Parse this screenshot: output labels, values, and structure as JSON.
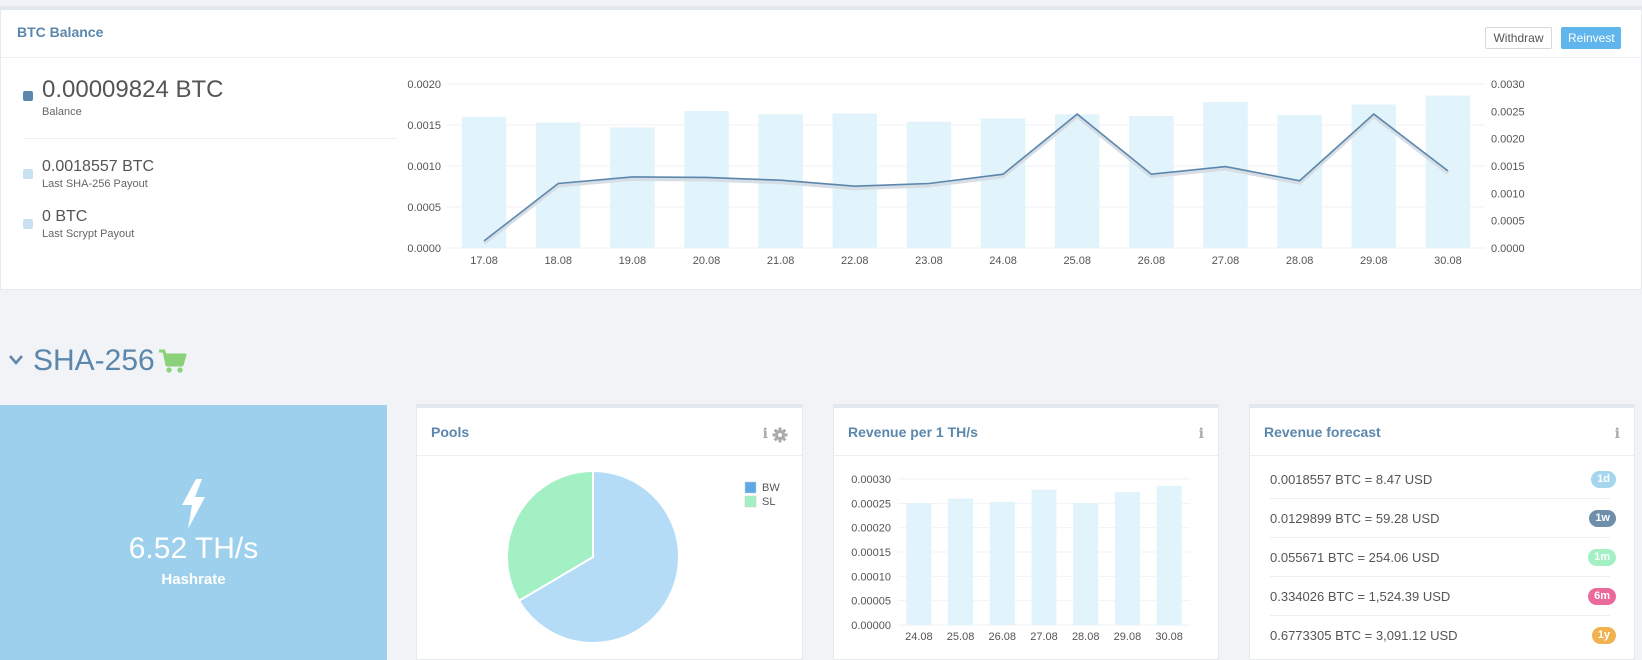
{
  "balance": {
    "title": "BTC Balance",
    "withdraw_label": "Withdraw",
    "reinvest_label": "Reinvest",
    "items": [
      {
        "value": "0.00009824 BTC",
        "label": "Balance",
        "color": "#5b87ad"
      },
      {
        "value": "0.0018557 BTC",
        "label": "Last SHA-256 Payout",
        "color": "#c9e2ef"
      },
      {
        "value": "0 BTC",
        "label": "Last Scrypt Payout",
        "color": "#c9e2ef"
      }
    ]
  },
  "chart_data": [
    {
      "type": "bar+line",
      "title": "BTC Balance",
      "categories": [
        "17.08",
        "18.08",
        "19.08",
        "20.08",
        "21.08",
        "22.08",
        "23.08",
        "24.08",
        "25.08",
        "26.08",
        "27.08",
        "28.08",
        "29.08",
        "30.08"
      ],
      "series": [
        {
          "name": "bars",
          "axis": "left",
          "values": [
            0.0016,
            0.00153,
            0.00147,
            0.00167,
            0.00163,
            0.00164,
            0.00154,
            0.00158,
            0.00163,
            0.00161,
            0.00178,
            0.00162,
            0.00175,
            0.00186
          ]
        },
        {
          "name": "line",
          "axis": "right",
          "values": [
            0.00013,
            0.00118,
            0.0013,
            0.00129,
            0.00124,
            0.00113,
            0.00118,
            0.00135,
            0.00245,
            0.00135,
            0.00149,
            0.00123,
            0.00245,
            0.00141
          ]
        }
      ],
      "ylim_left": [
        0,
        0.002
      ],
      "yticks_left": [
        "0.0000",
        "0.0005",
        "0.0010",
        "0.0015",
        "0.0020"
      ],
      "ylim_right": [
        0,
        0.003
      ],
      "yticks_right": [
        "0.0000",
        "0.0005",
        "0.0010",
        "0.0015",
        "0.0020",
        "0.0025",
        "0.0030"
      ],
      "bar_color": "#e1f3fb",
      "line_color": "#5b87ad"
    },
    {
      "type": "pie",
      "title": "Pools",
      "labels": [
        "BW",
        "SL"
      ],
      "values": [
        66.5,
        33.5
      ],
      "colors": [
        "#b5dcf7",
        "#a2f0c3"
      ],
      "legend_colors": [
        "#5fa8e6",
        "#a2f0c3"
      ],
      "legend": "top-right"
    },
    {
      "type": "bar",
      "title": "Revenue per 1 TH/s",
      "categories": [
        "24.08",
        "25.08",
        "26.08",
        "27.08",
        "28.08",
        "29.08",
        "30.08"
      ],
      "values": [
        0.00025,
        0.00026,
        0.000253,
        0.000278,
        0.00025,
        0.000273,
        0.000286
      ],
      "ylim": [
        0,
        0.0003
      ],
      "yticks": [
        "0.00000",
        "0.00005",
        "0.00010",
        "0.00015",
        "0.00020",
        "0.00025",
        "0.00030"
      ],
      "bar_color": "#e1f3fb"
    }
  ],
  "section": {
    "title": "SHA-256"
  },
  "hashrate": {
    "value": "6.52 TH/s",
    "label": "Hashrate"
  },
  "pools": {
    "title": "Pools"
  },
  "revenue": {
    "title": "Revenue per 1 TH/s"
  },
  "forecast": {
    "title": "Revenue forecast",
    "rows": [
      {
        "text": "0.0018557 BTC = 8.47 USD",
        "badge": "1d",
        "color": "#a5d6ee"
      },
      {
        "text": "0.0129899 BTC = 59.28 USD",
        "badge": "1w",
        "color": "#6e8ea9"
      },
      {
        "text": "0.055671 BTC = 254.06 USD",
        "badge": "1m",
        "color": "#a2f0c3"
      },
      {
        "text": "0.334026 BTC = 1,524.39 USD",
        "badge": "6m",
        "color": "#ea6b9b"
      },
      {
        "text": "0.6773305 BTC = 3,091.12 USD",
        "badge": "1y",
        "color": "#f1b24f"
      }
    ]
  }
}
